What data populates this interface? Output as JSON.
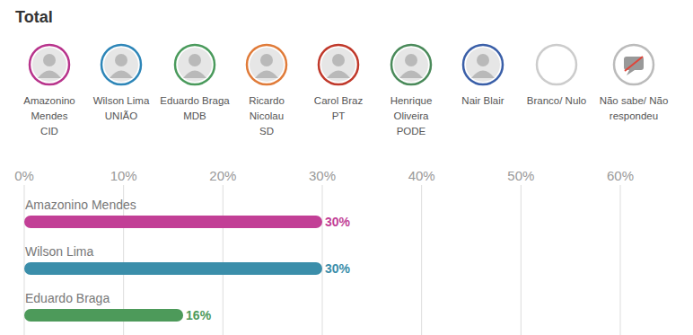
{
  "chart_data": {
    "type": "bar",
    "orientation": "horizontal",
    "title": "Total",
    "categories": [
      "Amazonino Mendes",
      "Wilson Lima",
      "Eduardo Braga"
    ],
    "values": [
      30,
      30,
      16
    ],
    "value_labels": [
      "30%",
      "30%",
      "16%"
    ],
    "colors": [
      "#c23f96",
      "#3b8eaa",
      "#4d9a5a"
    ],
    "xlim": [
      0,
      60
    ],
    "xticks": [
      {
        "value": 0,
        "label": "0%"
      },
      {
        "value": 10,
        "label": "10%"
      },
      {
        "value": 20,
        "label": "20%"
      },
      {
        "value": 30,
        "label": "30%"
      },
      {
        "value": 40,
        "label": "40%"
      },
      {
        "value": 50,
        "label": "50%"
      },
      {
        "value": 60,
        "label": "60%"
      }
    ],
    "grid": true,
    "data_labels": true
  },
  "header": {
    "candidates": [
      {
        "name": "Amazonino Mendes",
        "party": "CID",
        "color": "#b8348c"
      },
      {
        "name": "Wilson Lima",
        "party": "UNIÃO",
        "color": "#2e86b8"
      },
      {
        "name": "Eduardo Braga",
        "party": "MDB",
        "color": "#4a9a5c"
      },
      {
        "name": "Ricardo Nicolau",
        "party": "SD",
        "color": "#e07b39"
      },
      {
        "name": "Carol Braz",
        "party": "PT",
        "color": "#c0392b"
      },
      {
        "name": "Henrique Oliveira",
        "party": "PODE",
        "color": "#4a8a5a"
      },
      {
        "name": "Nair Blair",
        "color": "#3a5fa8"
      },
      {
        "name": "Branco/ Nulo",
        "color": "#cccccc"
      },
      {
        "name": "Não sabe/ Não respondeu",
        "color": "#bbbbbb"
      }
    ]
  }
}
